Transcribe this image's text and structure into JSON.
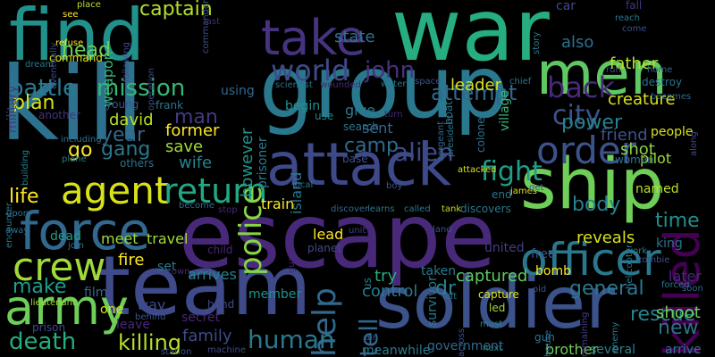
{
  "cloud": {
    "background": "#000000",
    "words": [
      {
        "text": "war",
        "color": "#26ad81"
      },
      {
        "text": "find",
        "color": "#21918c"
      },
      {
        "text": "group",
        "color": "#2a788e"
      },
      {
        "text": "kill",
        "color": "#2c728e"
      },
      {
        "text": "escape",
        "color": "#482878"
      },
      {
        "text": "team",
        "color": "#3e4a89"
      },
      {
        "text": "ship",
        "color": "#6ece58"
      },
      {
        "text": "soldier",
        "color": "#3b528b"
      },
      {
        "text": "men",
        "color": "#5ec962"
      },
      {
        "text": "attack",
        "color": "#3e4989"
      },
      {
        "text": "take",
        "color": "#46337f"
      },
      {
        "text": "killed",
        "color": "#440154"
      },
      {
        "text": "force",
        "color": "#31688e"
      },
      {
        "text": "army",
        "color": "#6ece58"
      },
      {
        "text": "crew",
        "color": "#a0da39"
      },
      {
        "text": "officer",
        "color": "#2a788e"
      },
      {
        "text": "agent",
        "color": "#d8e219"
      },
      {
        "text": "return",
        "color": "#22a884"
      },
      {
        "text": "order",
        "color": "#3b528b"
      },
      {
        "text": "back",
        "color": "#482878"
      },
      {
        "text": "world",
        "color": "#3e4a89"
      },
      {
        "text": "john",
        "color": "#46327e"
      },
      {
        "text": "city",
        "color": "#3b528b"
      },
      {
        "text": "fight",
        "color": "#1f9e89"
      },
      {
        "text": "alien",
        "color": "#3e4a89"
      },
      {
        "text": "help",
        "color": "#31688e"
      },
      {
        "text": "police",
        "color": "#86d549"
      },
      {
        "text": "mission",
        "color": "#35b779"
      },
      {
        "text": "battle",
        "color": "#2a788e"
      },
      {
        "text": "attempt",
        "color": "#31688e"
      },
      {
        "text": "human",
        "color": "#2a788e"
      },
      {
        "text": "death",
        "color": "#26ad81"
      },
      {
        "text": "killing",
        "color": "#b5de2b"
      },
      {
        "text": "rescue",
        "color": "#26828e"
      },
      {
        "text": "new",
        "color": "#2c728e"
      },
      {
        "text": "general",
        "color": "#2a788e"
      },
      {
        "text": "time",
        "color": "#21918c"
      },
      {
        "text": "life",
        "color": "#fde725"
      },
      {
        "text": "make",
        "color": "#1f9e89"
      },
      {
        "text": "dr",
        "color": "#26828e"
      },
      {
        "text": "tell",
        "color": "#31688e"
      },
      {
        "text": "captain",
        "color": "#b5de2b"
      },
      {
        "text": "head",
        "color": "#6ece58"
      },
      {
        "text": "plan",
        "color": "#d8e219"
      },
      {
        "text": "go",
        "color": "#fde725"
      },
      {
        "text": "gang",
        "color": "#2a788e"
      },
      {
        "text": "year",
        "color": "#31688e"
      },
      {
        "text": "man",
        "color": "#443983"
      },
      {
        "text": "body",
        "color": "#26828e"
      },
      {
        "text": "camp",
        "color": "#31688e"
      },
      {
        "text": "power",
        "color": "#26828e"
      },
      {
        "text": "state",
        "color": "#2c728e"
      },
      {
        "text": "father",
        "color": "#b5de2b"
      },
      {
        "text": "also",
        "color": "#2c728e"
      },
      {
        "text": "leader",
        "color": "#d8e219"
      },
      {
        "text": "creature",
        "color": "#d8e219"
      },
      {
        "text": "prisoner",
        "color": "#2a788e"
      },
      {
        "text": "however",
        "color": "#21918c"
      },
      {
        "text": "family",
        "color": "#3e4a89"
      },
      {
        "text": "fire",
        "color": "#fde725"
      },
      {
        "text": "try",
        "color": "#26ad81"
      },
      {
        "text": "control",
        "color": "#2a788e"
      },
      {
        "text": "captured",
        "color": "#5ec962"
      },
      {
        "text": "shoot",
        "color": "#6ece58"
      },
      {
        "text": "save",
        "color": "#a0da39"
      },
      {
        "text": "former",
        "color": "#fde725"
      },
      {
        "text": "david",
        "color": "#b5de2b"
      },
      {
        "text": "wife",
        "color": "#26828e"
      },
      {
        "text": "shot",
        "color": "#86d549"
      },
      {
        "text": "friend",
        "color": "#3b528b"
      },
      {
        "text": "reveals",
        "color": "#d8e219"
      },
      {
        "text": "later",
        "color": "#482878"
      },
      {
        "text": "begin",
        "color": "#21918c"
      },
      {
        "text": "give",
        "color": "#2a788e"
      },
      {
        "text": "sent",
        "color": "#31688e"
      },
      {
        "text": "lead",
        "color": "#fde725"
      },
      {
        "text": "train",
        "color": "#fde725"
      },
      {
        "text": "meet",
        "color": "#a0da39"
      },
      {
        "text": "travel",
        "color": "#a0da39"
      },
      {
        "text": "arrives",
        "color": "#26828e"
      },
      {
        "text": "member",
        "color": "#21918c"
      },
      {
        "text": "dead",
        "color": "#1f9e89"
      },
      {
        "text": "set",
        "color": "#2a788e"
      },
      {
        "text": "pilot",
        "color": "#a0da39"
      },
      {
        "text": "people",
        "color": "#d8e219"
      },
      {
        "text": "named",
        "color": "#bddf26"
      },
      {
        "text": "woman",
        "color": "#2c728e"
      },
      {
        "text": "island",
        "color": "#2a788e"
      },
      {
        "text": "village",
        "color": "#35b779"
      },
      {
        "text": "weapon",
        "color": "#35b779"
      },
      {
        "text": "military",
        "color": "#443983"
      },
      {
        "text": "using",
        "color": "#31688e"
      },
      {
        "text": "others",
        "color": "#2c728e"
      },
      {
        "text": "way",
        "color": "#3e4a89"
      },
      {
        "text": "bomb",
        "color": "#fde725"
      },
      {
        "text": "free",
        "color": "#3b528b"
      },
      {
        "text": "king",
        "color": "#2c728e"
      },
      {
        "text": "brother",
        "color": "#6ece58"
      },
      {
        "text": "several",
        "color": "#26828e"
      },
      {
        "text": "arrive",
        "color": "#2a788e"
      },
      {
        "text": "united",
        "color": "#433e85"
      },
      {
        "text": "taken",
        "color": "#2a788e"
      },
      {
        "text": "secret",
        "color": "#482878"
      },
      {
        "text": "leave",
        "color": "#482878"
      },
      {
        "text": "government",
        "color": "#31688e"
      },
      {
        "text": "meanwhile",
        "color": "#2a788e"
      },
      {
        "text": "one",
        "color": "#d8e219"
      },
      {
        "text": "film",
        "color": "#31688e"
      },
      {
        "text": "hand",
        "color": "#3e4a89"
      },
      {
        "text": "young",
        "color": "#3b528b"
      },
      {
        "text": "frank",
        "color": "#2c728e"
      },
      {
        "text": "including",
        "color": "#2c728e"
      },
      {
        "text": "plane",
        "color": "#2a788e"
      },
      {
        "text": "another",
        "color": "#46337f"
      },
      {
        "text": "command",
        "color": "#d8e219"
      },
      {
        "text": "refuse",
        "color": "#fde725"
      },
      {
        "text": "place",
        "color": "#b5de2b"
      },
      {
        "text": "see",
        "color": "#fde725"
      },
      {
        "text": "building",
        "color": "#26828e"
      },
      {
        "text": "encounter",
        "color": "#2a788e"
      },
      {
        "text": "upon",
        "color": "#2c728e"
      },
      {
        "text": "away",
        "color": "#2c728e"
      },
      {
        "text": "join",
        "color": "#2c728e"
      },
      {
        "text": "prison",
        "color": "#3e4a89"
      },
      {
        "text": "lieutenant",
        "color": "#a0da39"
      },
      {
        "text": "behind",
        "color": "#3b528b"
      },
      {
        "text": "station",
        "color": "#3b528b"
      },
      {
        "text": "town",
        "color": "#482878"
      },
      {
        "text": "child",
        "color": "#482878"
      },
      {
        "text": "become",
        "color": "#31688e"
      },
      {
        "text": "stop",
        "color": "#482878"
      },
      {
        "text": "guard",
        "color": "#482878"
      },
      {
        "text": "machine",
        "color": "#3e4a89"
      },
      {
        "text": "planet",
        "color": "#3e4a89"
      },
      {
        "text": "unit",
        "color": "#433e85"
      },
      {
        "text": "discover",
        "color": "#31688e"
      },
      {
        "text": "learns",
        "color": "#2a788e"
      },
      {
        "text": "called",
        "color": "#2a788e"
      },
      {
        "text": "tank",
        "color": "#bddf26"
      },
      {
        "text": "discovers",
        "color": "#2a788e"
      },
      {
        "text": "survivor",
        "color": "#2a788e"
      },
      {
        "text": "land",
        "color": "#3b528b"
      },
      {
        "text": "us",
        "color": "#26828e"
      },
      {
        "text": "air",
        "color": "#3b528b"
      },
      {
        "text": "left",
        "color": "#2c728e"
      },
      {
        "text": "capture",
        "color": "#d8e219"
      },
      {
        "text": "led",
        "color": "#a0da39"
      },
      {
        "text": "must",
        "color": "#26828e"
      },
      {
        "text": "across",
        "color": "#3b528b"
      },
      {
        "text": "next",
        "color": "#26828e"
      },
      {
        "text": "gun",
        "color": "#2a788e"
      },
      {
        "text": "house",
        "color": "#31688e"
      },
      {
        "text": "old",
        "color": "#3b528b"
      },
      {
        "text": "remaining",
        "color": "#433e85"
      },
      {
        "text": "enemy",
        "color": "#2a788e"
      },
      {
        "text": "forced",
        "color": "#2a788e"
      },
      {
        "text": "soon",
        "color": "#31688e"
      },
      {
        "text": "work",
        "color": "#2a788e"
      },
      {
        "text": "zombie",
        "color": "#3b528b"
      },
      {
        "text": "helicopter",
        "color": "#2a788e"
      },
      {
        "text": "end",
        "color": "#2c728e"
      },
      {
        "text": "james",
        "color": "#d8e219"
      },
      {
        "text": "get",
        "color": "#3e4a89"
      },
      {
        "text": "attacked",
        "color": "#d8e219"
      },
      {
        "text": "boy",
        "color": "#3b528b"
      },
      {
        "text": "local",
        "color": "#2a788e"
      },
      {
        "text": "base",
        "color": "#3b528b"
      },
      {
        "text": "search",
        "color": "#2c728e"
      },
      {
        "text": "use",
        "color": "#26828e"
      },
      {
        "text": "boat",
        "color": "#2a788e"
      },
      {
        "text": "turn",
        "color": "#482878"
      },
      {
        "text": "colonel",
        "color": "#2c728e"
      },
      {
        "text": "president",
        "color": "#2c728e"
      },
      {
        "text": "sergeant",
        "color": "#31688e"
      },
      {
        "text": "chief",
        "color": "#2c728e"
      },
      {
        "text": "water",
        "color": "#2a788e"
      },
      {
        "text": "space",
        "color": "#3b528b"
      },
      {
        "text": "wounded",
        "color": "#482878"
      },
      {
        "text": "scientist",
        "color": "#2c728e"
      },
      {
        "text": "story",
        "color": "#2a788e"
      },
      {
        "text": "car",
        "color": "#3e4a89"
      },
      {
        "text": "fall",
        "color": "#46337f"
      },
      {
        "text": "reach",
        "color": "#2a788e"
      },
      {
        "text": "come",
        "color": "#3b528b"
      },
      {
        "text": "run",
        "color": "#3b528b"
      },
      {
        "text": "home",
        "color": "#31688e"
      },
      {
        "text": "destroy",
        "color": "#2c728e"
      },
      {
        "text": "becomes",
        "color": "#31688e"
      },
      {
        "text": "along",
        "color": "#3e4a89"
      },
      {
        "text": "commander",
        "color": "#3b528b"
      },
      {
        "text": "last",
        "color": "#482878"
      },
      {
        "text": "following",
        "color": "#3e4a89"
      },
      {
        "text": "eventually",
        "color": "#3e4a89"
      },
      {
        "text": "operation",
        "color": "#3e4a89"
      },
      {
        "text": "dream",
        "color": "#2a788e"
      }
    ]
  }
}
